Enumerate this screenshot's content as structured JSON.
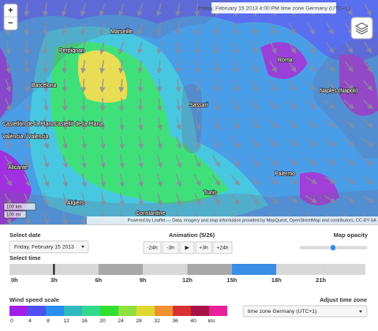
{
  "map": {
    "banner": "Friday, February 15 2013 4:00 PM time zone Germany (UTC+1)",
    "cities": [
      "Perpignan",
      "Marseille",
      "Barcelona",
      "Castellón de la Plana",
      "Castelló de la Plana",
      "València / Valencia",
      "Alicante",
      "Sassari",
      "Roma",
      "Naples (Napoli)",
      "Palermo",
      "Tunis",
      "Algiers",
      "Constantine"
    ],
    "zoom_in": "+",
    "zoom_out": "−",
    "scale_km": "100 km",
    "scale_mi": "100 mi",
    "attribution": "Powered by Leaflet — Data, imagery and map information provided by MapQuest, OpenStreetMap and contributors, CC-BY-SA"
  },
  "controls": {
    "select_date": "Select date",
    "date": "Friday, February 15 2013",
    "animation": "Animation (5/26)",
    "buttons": [
      "-24h",
      "-3h",
      "▶",
      "+3h",
      "+24h"
    ],
    "map_opacity": "Map opacity",
    "select_time": "Select time",
    "time_labels": [
      "0h",
      "3h",
      "6h",
      "9h",
      "12h",
      "15h",
      "18h",
      "21h"
    ],
    "adjust_timezone": "Adjust time zone",
    "timezone": "time zone Germany (UTC+1)"
  },
  "legend": {
    "title": "Wind speed scale",
    "labels": [
      0,
      4,
      8,
      12,
      16,
      20,
      24,
      28,
      32,
      36,
      40
    ],
    "unit": "kts",
    "colors": [
      "#a020e8",
      "#5050f0",
      "#2a8ef0",
      "#30b8c0",
      "#30d890",
      "#30e030",
      "#90e040",
      "#e0d830",
      "#f09030",
      "#d83030",
      "#a81048",
      "#e8209a"
    ]
  }
}
